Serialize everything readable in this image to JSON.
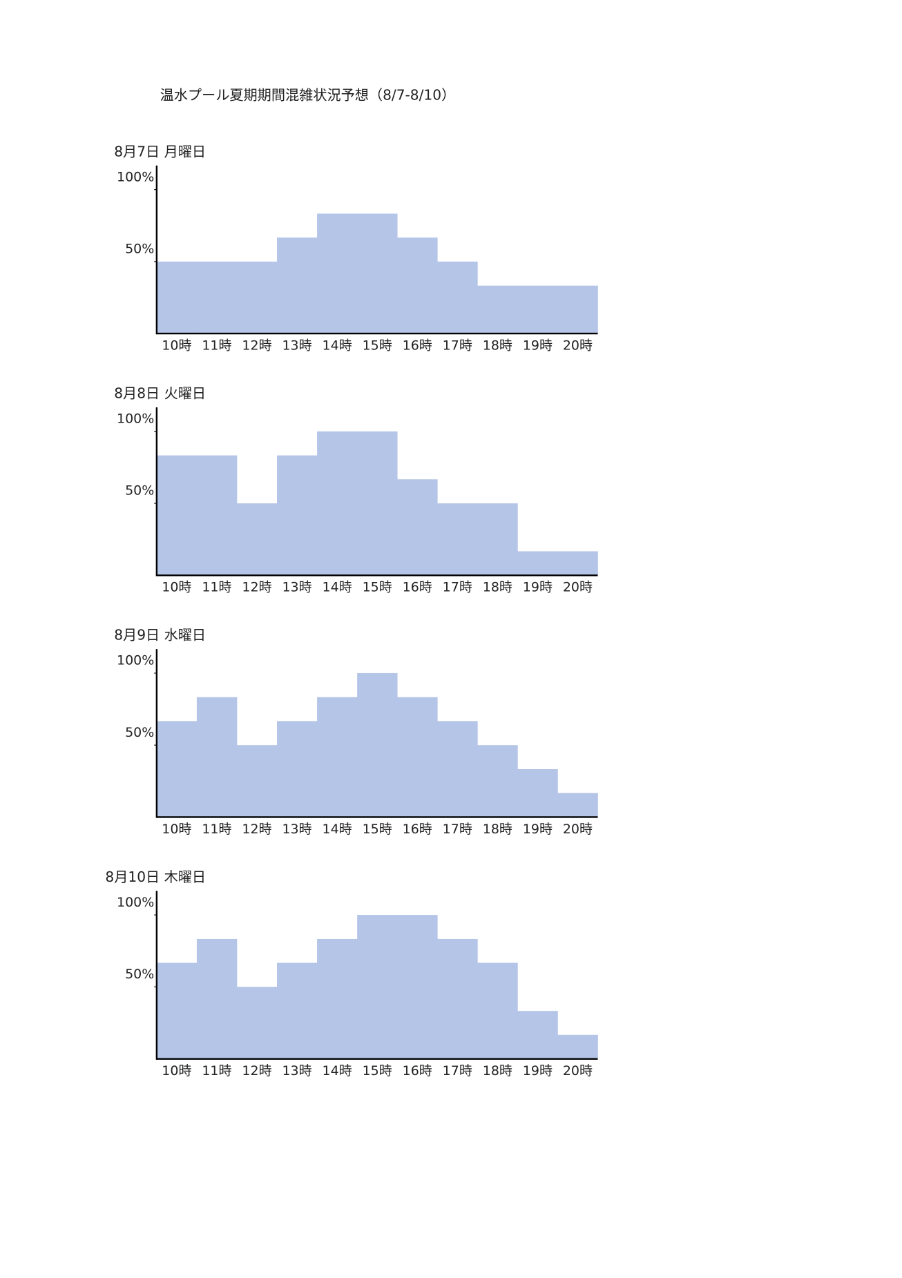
{
  "title": "温水プール夏期期間混雑状況予想（8/7-8/10）",
  "chart_data": [
    {
      "type": "bar",
      "title": "8月7日 月曜日",
      "categories": [
        "10時",
        "11時",
        "12時",
        "13時",
        "14時",
        "15時",
        "16時",
        "17時",
        "18時",
        "19時",
        "20時"
      ],
      "values": [
        50,
        50,
        50,
        66.7,
        83.3,
        83.3,
        66.7,
        50,
        33.3,
        33.3,
        33.3
      ],
      "color": "#b4c5e7",
      "ylim": [
        0,
        116.7
      ],
      "yticks": [
        {
          "value": 50,
          "label": "50%"
        },
        {
          "value": 100,
          "label": "100%"
        }
      ]
    },
    {
      "type": "bar",
      "title": "8月8日 火曜日",
      "categories": [
        "10時",
        "11時",
        "12時",
        "13時",
        "14時",
        "15時",
        "16時",
        "17時",
        "18時",
        "19時",
        "20時"
      ],
      "values": [
        83.3,
        83.3,
        50,
        83.3,
        100,
        100,
        66.7,
        50,
        50,
        16.7,
        16.7
      ],
      "color": "#b4c5e7",
      "ylim": [
        0,
        116.7
      ],
      "yticks": [
        {
          "value": 50,
          "label": "50%"
        },
        {
          "value": 100,
          "label": "100%"
        }
      ]
    },
    {
      "type": "bar",
      "title": "8月9日 水曜日",
      "categories": [
        "10時",
        "11時",
        "12時",
        "13時",
        "14時",
        "15時",
        "16時",
        "17時",
        "18時",
        "19時",
        "20時"
      ],
      "values": [
        66.7,
        83.3,
        50,
        66.7,
        83.3,
        100,
        83.3,
        66.7,
        50,
        33.3,
        16.7
      ],
      "color": "#b4c5e7",
      "ylim": [
        0,
        116.7
      ],
      "yticks": [
        {
          "value": 50,
          "label": "50%"
        },
        {
          "value": 100,
          "label": "100%"
        }
      ]
    },
    {
      "type": "bar",
      "title": "8月10日 木曜日",
      "categories": [
        "10時",
        "11時",
        "12時",
        "13時",
        "14時",
        "15時",
        "16時",
        "17時",
        "18時",
        "19時",
        "20時"
      ],
      "values": [
        66.7,
        83.3,
        50,
        66.7,
        83.3,
        100,
        100,
        83.3,
        66.7,
        33.3,
        16.7
      ],
      "color": "#b4c5e7",
      "ylim": [
        0,
        116.7
      ],
      "yticks": [
        {
          "value": 50,
          "label": "50%"
        },
        {
          "value": 100,
          "label": "100%"
        }
      ]
    }
  ]
}
